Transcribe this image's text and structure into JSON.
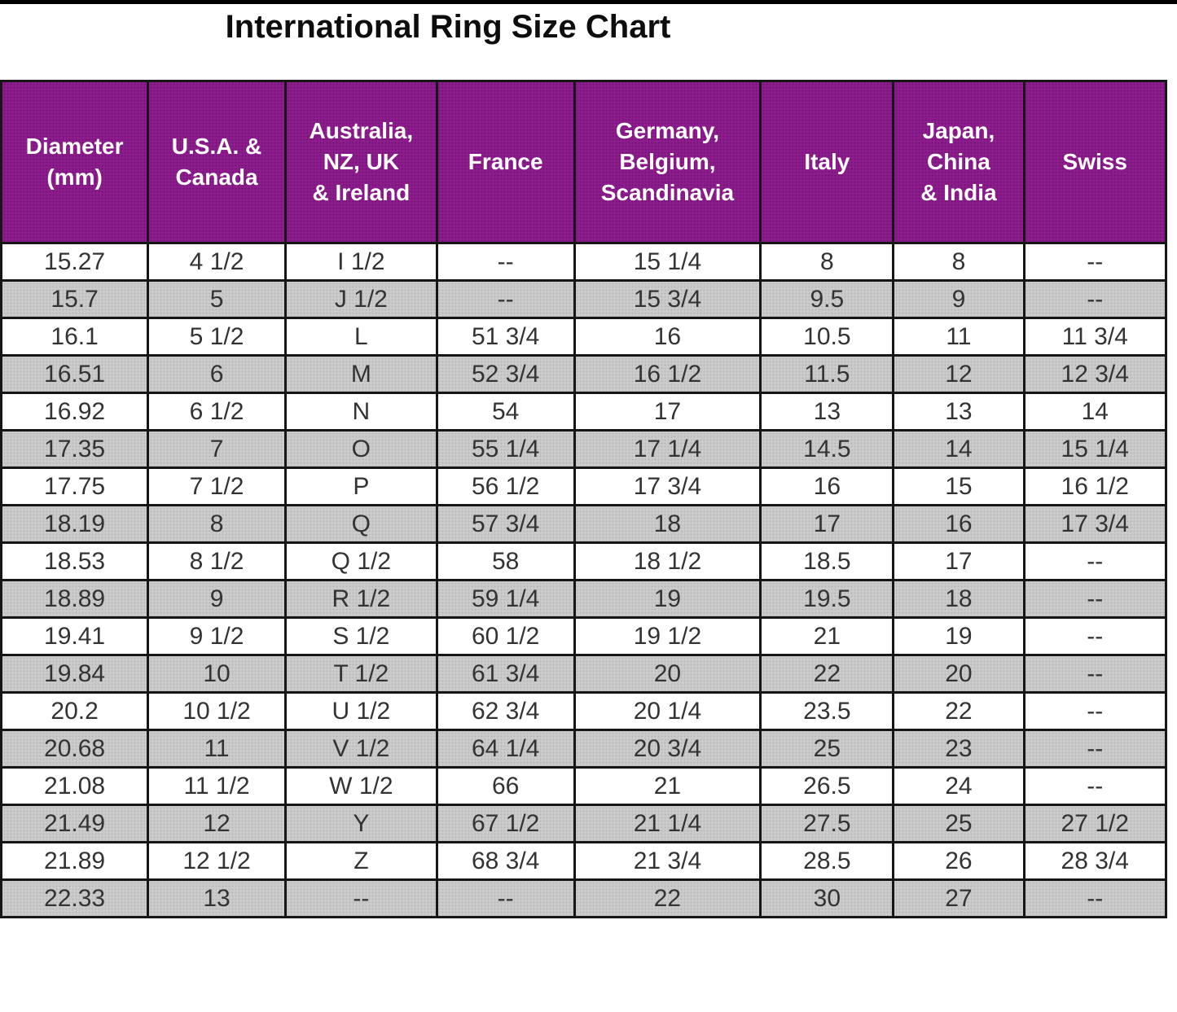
{
  "title": "International Ring Size Chart",
  "colors": {
    "header_bg": "#8d1c8d",
    "header_text": "#ffffff",
    "row_bg": "#ffffff",
    "row_alt_bg": "#cbcbcb",
    "border": "#161616",
    "text": "#333333"
  },
  "chart_data": {
    "type": "table",
    "title": "International Ring Size Chart",
    "columns": [
      "Diameter\n(mm)",
      "U.S.A. &\nCanada",
      "Australia,\nNZ, UK\n& Ireland",
      "France",
      "Germany,\nBelgium,\nScandinavia",
      "Italy",
      "Japan,\nChina\n& India",
      "Swiss"
    ],
    "rows": [
      [
        "15.27",
        "4 1/2",
        "I 1/2",
        "--",
        "15 1/4",
        "8",
        "8",
        "--"
      ],
      [
        "15.7",
        "5",
        "J 1/2",
        "--",
        "15 3/4",
        "9.5",
        "9",
        "--"
      ],
      [
        "16.1",
        "5 1/2",
        "L",
        "51 3/4",
        "16",
        "10.5",
        "11",
        "11 3/4"
      ],
      [
        "16.51",
        "6",
        "M",
        "52 3/4",
        "16 1/2",
        "11.5",
        "12",
        "12 3/4"
      ],
      [
        "16.92",
        "6 1/2",
        "N",
        "54",
        "17",
        "13",
        "13",
        "14"
      ],
      [
        "17.35",
        "7",
        "O",
        "55 1/4",
        "17 1/4",
        "14.5",
        "14",
        "15 1/4"
      ],
      [
        "17.75",
        "7 1/2",
        "P",
        "56 1/2",
        "17 3/4",
        "16",
        "15",
        "16 1/2"
      ],
      [
        "18.19",
        "8",
        "Q",
        "57 3/4",
        "18",
        "17",
        "16",
        "17 3/4"
      ],
      [
        "18.53",
        "8 1/2",
        "Q 1/2",
        "58",
        "18 1/2",
        "18.5",
        "17",
        "--"
      ],
      [
        "18.89",
        "9",
        "R 1/2",
        "59 1/4",
        "19",
        "19.5",
        "18",
        "--"
      ],
      [
        "19.41",
        "9 1/2",
        "S 1/2",
        "60 1/2",
        "19 1/2",
        "21",
        "19",
        "--"
      ],
      [
        "19.84",
        "10",
        "T 1/2",
        "61 3/4",
        "20",
        "22",
        "20",
        "--"
      ],
      [
        "20.2",
        "10 1/2",
        "U 1/2",
        "62 3/4",
        "20 1/4",
        "23.5",
        "22",
        "--"
      ],
      [
        "20.68",
        "11",
        "V 1/2",
        "64 1/4",
        "20 3/4",
        "25",
        "23",
        "--"
      ],
      [
        "21.08",
        "11 1/2",
        "W 1/2",
        "66",
        "21",
        "26.5",
        "24",
        "--"
      ],
      [
        "21.49",
        "12",
        "Y",
        "67 1/2",
        "21 1/4",
        "27.5",
        "25",
        "27 1/2"
      ],
      [
        "21.89",
        "12 1/2",
        "Z",
        "68 3/4",
        "21 3/4",
        "28.5",
        "26",
        "28 3/4"
      ],
      [
        "22.33",
        "13",
        "--",
        "--",
        "22",
        "30",
        "27",
        "--"
      ]
    ],
    "column_widths_pct": [
      12.6,
      11.8,
      13.0,
      11.8,
      16.0,
      11.4,
      11.2,
      12.2
    ]
  }
}
